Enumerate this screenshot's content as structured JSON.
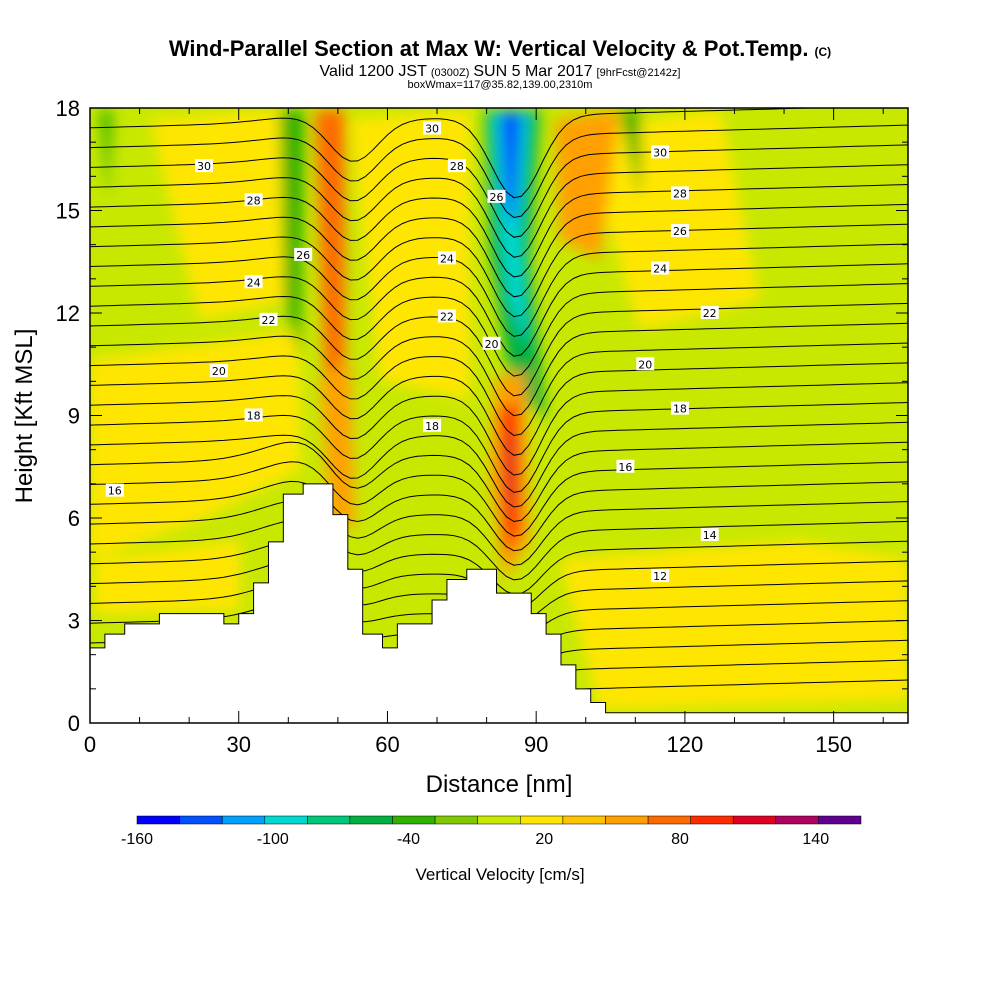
{
  "chart_data": {
    "type": "heatmap",
    "title": "Wind-Parallel Section at Max W: Vertical Velocity & Pot.Temp.",
    "title_mark": "(C)",
    "subtitle_parts": [
      "Valid 1200 JST",
      "(0300Z)",
      "SUN 5 Mar 2017",
      "[9hrFcst@2142z]"
    ],
    "subtitle2": "boxWmax=117@35.82,139.00,2310m",
    "xlabel": "Distance [nm]",
    "ylabel": "Height [Kft MSL]",
    "xlim": [
      0,
      165
    ],
    "ylim": [
      0,
      18
    ],
    "xticks": [
      "0",
      "30",
      "60",
      "90",
      "120",
      "150"
    ],
    "xtick_values": [
      0,
      30,
      60,
      90,
      120,
      150
    ],
    "yticks": [
      "0",
      "3",
      "6",
      "9",
      "12",
      "15",
      "18"
    ],
    "ytick_values": [
      0,
      3,
      6,
      9,
      12,
      15,
      18
    ],
    "colorbar": {
      "label": "Vertical Velocity [cm/s]",
      "min": -160,
      "max": 160,
      "step": 20,
      "tick_labels": [
        "-160",
        "-100",
        "-40",
        "20",
        "80",
        "140"
      ],
      "tick_values": [
        -160,
        -100,
        -40,
        20,
        80,
        140
      ],
      "colors": [
        "#0000ff",
        "#0050ff",
        "#00a0ff",
        "#00d8d0",
        "#00c878",
        "#00b040",
        "#30b000",
        "#80c800",
        "#c8e800",
        "#ffe600",
        "#ffc400",
        "#ffa000",
        "#ff6a00",
        "#ff2a00",
        "#e00020",
        "#b00060",
        "#600090"
      ]
    },
    "contour_levels": [
      12,
      14,
      16,
      18,
      20,
      22,
      24,
      26,
      28,
      30
    ],
    "contour_labels": [
      {
        "text": "30",
        "x": 23,
        "y": 16.3
      },
      {
        "text": "28",
        "x": 33,
        "y": 15.3
      },
      {
        "text": "26",
        "x": 43,
        "y": 13.7
      },
      {
        "text": "24",
        "x": 33,
        "y": 12.9
      },
      {
        "text": "22",
        "x": 36,
        "y": 11.8
      },
      {
        "text": "20",
        "x": 26,
        "y": 10.3
      },
      {
        "text": "18",
        "x": 33,
        "y": 9.0
      },
      {
        "text": "16",
        "x": 5,
        "y": 6.8
      },
      {
        "text": "30",
        "x": 69,
        "y": 17.4
      },
      {
        "text": "28",
        "x": 74,
        "y": 16.3
      },
      {
        "text": "26",
        "x": 82,
        "y": 15.4
      },
      {
        "text": "24",
        "x": 72,
        "y": 13.6
      },
      {
        "text": "22",
        "x": 72,
        "y": 11.9
      },
      {
        "text": "20",
        "x": 81,
        "y": 11.1
      },
      {
        "text": "18",
        "x": 69,
        "y": 8.7
      },
      {
        "text": "30",
        "x": 115,
        "y": 16.7
      },
      {
        "text": "28",
        "x": 119,
        "y": 15.5
      },
      {
        "text": "26",
        "x": 119,
        "y": 14.4
      },
      {
        "text": "24",
        "x": 115,
        "y": 13.3
      },
      {
        "text": "22",
        "x": 125,
        "y": 12.0
      },
      {
        "text": "20",
        "x": 112,
        "y": 10.5
      },
      {
        "text": "18",
        "x": 119,
        "y": 9.2
      },
      {
        "text": "16",
        "x": 108,
        "y": 7.5
      },
      {
        "text": "14",
        "x": 125,
        "y": 5.5
      },
      {
        "text": "12",
        "x": 115,
        "y": 4.3
      }
    ],
    "terrain_profile": [
      [
        0,
        2.2
      ],
      [
        3,
        2.2
      ],
      [
        3,
        2.6
      ],
      [
        7,
        2.6
      ],
      [
        7,
        2.9
      ],
      [
        14,
        2.9
      ],
      [
        14,
        3.2
      ],
      [
        27,
        3.2
      ],
      [
        27,
        2.9
      ],
      [
        30,
        2.9
      ],
      [
        30,
        3.2
      ],
      [
        33,
        3.2
      ],
      [
        33,
        4.1
      ],
      [
        36,
        4.1
      ],
      [
        36,
        5.3
      ],
      [
        39,
        5.3
      ],
      [
        39,
        6.7
      ],
      [
        43,
        6.7
      ],
      [
        43,
        7.0
      ],
      [
        49,
        7.0
      ],
      [
        49,
        6.1
      ],
      [
        52,
        6.1
      ],
      [
        52,
        4.5
      ],
      [
        55,
        4.5
      ],
      [
        55,
        2.6
      ],
      [
        59,
        2.6
      ],
      [
        59,
        2.2
      ],
      [
        62,
        2.2
      ],
      [
        62,
        2.9
      ],
      [
        69,
        2.9
      ],
      [
        69,
        3.6
      ],
      [
        72,
        3.6
      ],
      [
        72,
        4.2
      ],
      [
        76,
        4.2
      ],
      [
        76,
        4.5
      ],
      [
        82,
        4.5
      ],
      [
        82,
        3.8
      ],
      [
        89,
        3.8
      ],
      [
        89,
        3.2
      ],
      [
        92,
        3.2
      ],
      [
        92,
        2.6
      ],
      [
        95,
        2.6
      ],
      [
        95,
        1.7
      ],
      [
        98,
        1.7
      ],
      [
        98,
        1.0
      ],
      [
        101,
        1.0
      ],
      [
        101,
        0.6
      ],
      [
        104,
        0.6
      ],
      [
        104,
        0.3
      ],
      [
        165,
        0.3
      ]
    ]
  }
}
